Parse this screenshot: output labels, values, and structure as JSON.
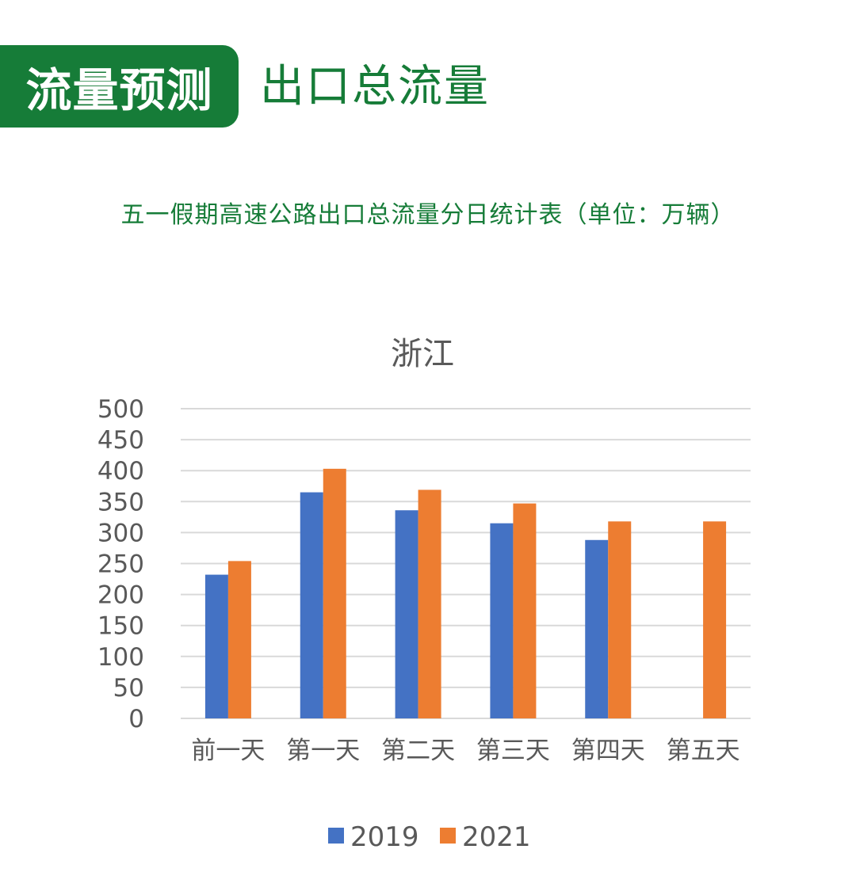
{
  "header": {
    "badge": "流量预测",
    "title": "出口总流量"
  },
  "subtitle": "五一假期高速公路出口总流量分日统计表（单位：万辆）",
  "colors": {
    "brand_green": "#167c38",
    "series_2019": "#4472c4",
    "series_2021": "#ed7d31",
    "grid": "#d9d9d9",
    "text": "#595959"
  },
  "chart_data": {
    "type": "bar",
    "title": "浙江",
    "xlabel": "",
    "ylabel": "",
    "ylim": [
      0,
      500
    ],
    "yticks": [
      0,
      50,
      100,
      150,
      200,
      250,
      300,
      350,
      400,
      450,
      500
    ],
    "grid": true,
    "legend": "bottom",
    "categories": [
      "前一天",
      "第一天",
      "第二天",
      "第三天",
      "第四天",
      "第五天"
    ],
    "series": [
      {
        "name": "2019",
        "values": [
          232,
          365,
          336,
          315,
          288,
          null
        ]
      },
      {
        "name": "2021",
        "values": [
          254,
          403,
          369,
          347,
          318,
          318
        ]
      }
    ]
  }
}
